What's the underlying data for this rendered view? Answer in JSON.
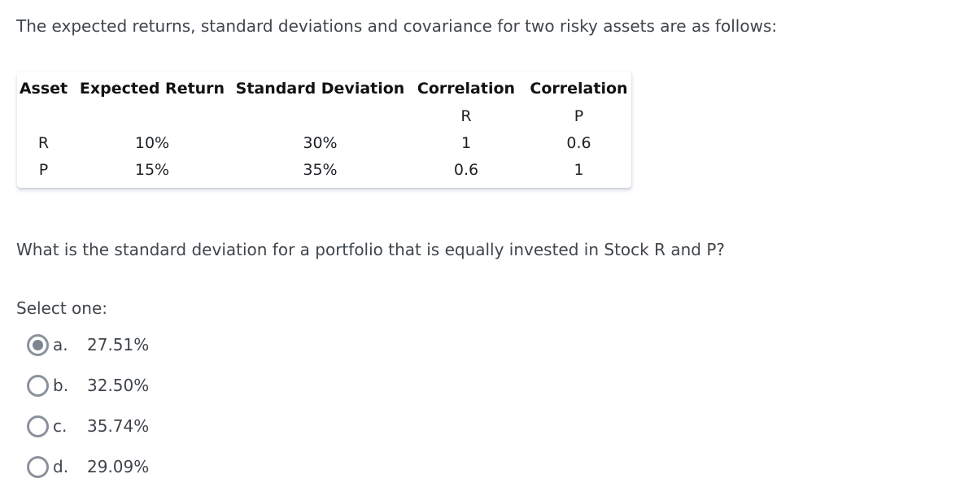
{
  "question": {
    "intro": "The expected returns, standard deviations and covariance for two risky assets are as follows:",
    "prompt": "What is the standard deviation for a portfolio that is equally invested in Stock R and P?",
    "select_label": "Select one:"
  },
  "table": {
    "headers": [
      "Asset",
      "Expected Return",
      "Standard Deviation",
      "Correlation",
      "Correlation"
    ],
    "subheaders": [
      "",
      "",
      "",
      "R",
      "P"
    ],
    "rows": [
      [
        "R",
        "10%",
        "30%",
        "1",
        "0.6"
      ],
      [
        "P",
        "15%",
        "35%",
        "0.6",
        "1"
      ]
    ]
  },
  "options": [
    {
      "letter": "a.",
      "text": "27.51%",
      "selected": true
    },
    {
      "letter": "b.",
      "text": "32.50%",
      "selected": false
    },
    {
      "letter": "c.",
      "text": "35.74%",
      "selected": false
    },
    {
      "letter": "d.",
      "text": "29.09%",
      "selected": false
    }
  ],
  "colors": {
    "text": "#3f454b",
    "table_text": "#1d2125",
    "radio_border": "#8b929c",
    "radio_dot": "#7d8591"
  }
}
